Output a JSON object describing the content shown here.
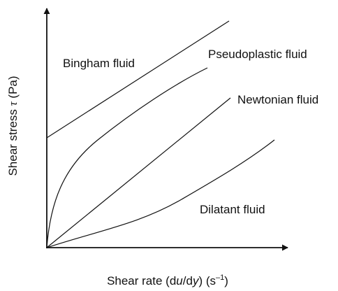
{
  "axes": {
    "y_label": [
      "Shear stress ",
      "τ",
      " (Pa)"
    ],
    "x_label": [
      "Shear rate (d",
      "u",
      "/d",
      "y",
      ") (s",
      "–1",
      ")"
    ]
  },
  "curves": [
    {
      "label": "Bingham fluid"
    },
    {
      "label": "Pseudoplastic fluid"
    },
    {
      "label": "Newtonian fluid"
    },
    {
      "label": "Dilatant fluid"
    }
  ]
}
